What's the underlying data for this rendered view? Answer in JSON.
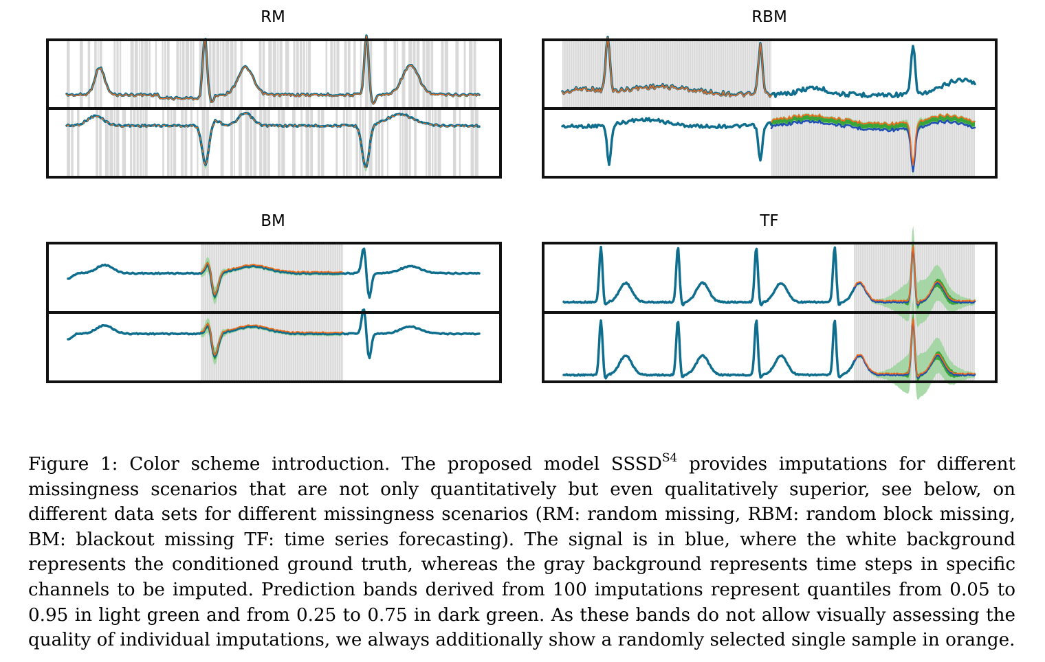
{
  "figure": {
    "panels": [
      {
        "title": "RM",
        "scenario": "random missing"
      },
      {
        "title": "RBM",
        "scenario": "random block missing"
      },
      {
        "title": "BM",
        "scenario": "blackout missing"
      },
      {
        "title": "TF",
        "scenario": "time series forecasting"
      }
    ]
  },
  "colors": {
    "signal": "#0f6e8e",
    "signal_blue": "#1f4fb4",
    "sample": "#ee6a1c",
    "band_light": "#9bd49b",
    "band_dark": "#2ca02c",
    "missing_background": "#d9d9d9"
  },
  "caption": {
    "label": "Figure 1:",
    "part1": "Color scheme introduction.  The proposed model SSSD",
    "model_superscript": "S4",
    "part2": " provides imputations for different missingness scenarios that are not only quantitatively but even qualitatively superior, see below, on different data sets for different missingness scenarios (RM: random missing, RBM: random block missing, BM: blackout missing TF: time series forecasting).  The signal is in blue, where the white background represents the conditioned ground truth, whereas the gray background represents time steps in specific channels to be imputed. Prediction bands derived from 100 imputations represent quantiles from 0.05 to 0.95 in light green and from 0.25 to 0.75 in dark green. As these bands do not allow visually assessing the quality of individual imputations, we always additionally show a randomly selected single sample in orange."
  }
}
